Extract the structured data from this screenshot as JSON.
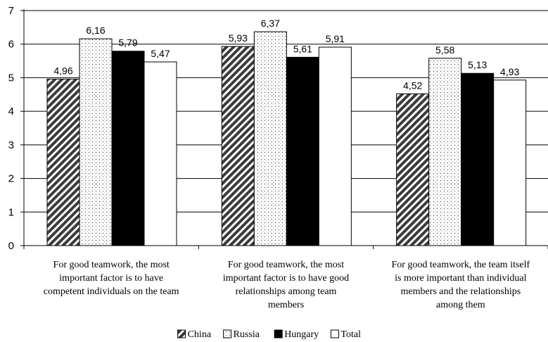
{
  "chart_data": {
    "type": "bar",
    "categories": [
      [
        "For good teamwork, the most",
        "important factor is to have",
        "competent individuals on the team"
      ],
      [
        "For good teamwork, the most",
        "important factor is to have good",
        "relationships among  team",
        "members"
      ],
      [
        "For good teamwork, the team itself",
        "is more important than individual",
        "members and the relationships",
        "among them"
      ]
    ],
    "series": [
      {
        "name": "China",
        "values": [
          4.96,
          5.93,
          4.52
        ],
        "labels": [
          "4,96",
          "5,93",
          "4,52"
        ],
        "pattern": "diagonal-hatch"
      },
      {
        "name": "Russia",
        "values": [
          6.16,
          6.37,
          5.58
        ],
        "labels": [
          "6,16",
          "6,37",
          "5,58"
        ],
        "pattern": "dots"
      },
      {
        "name": "Hungary",
        "values": [
          5.79,
          5.61,
          5.13
        ],
        "labels": [
          "5,79",
          "5,61",
          "5,13"
        ],
        "pattern": "solid-black"
      },
      {
        "name": "Total",
        "values": [
          5.47,
          5.91,
          4.93
        ],
        "labels": [
          "5,47",
          "5,91",
          "4,93"
        ],
        "pattern": "white"
      }
    ],
    "yticks": [
      "0",
      "1",
      "2",
      "3",
      "4",
      "5",
      "6",
      "7"
    ],
    "ylim": [
      0,
      7
    ],
    "grid": true,
    "legend_position": "bottom-center"
  }
}
